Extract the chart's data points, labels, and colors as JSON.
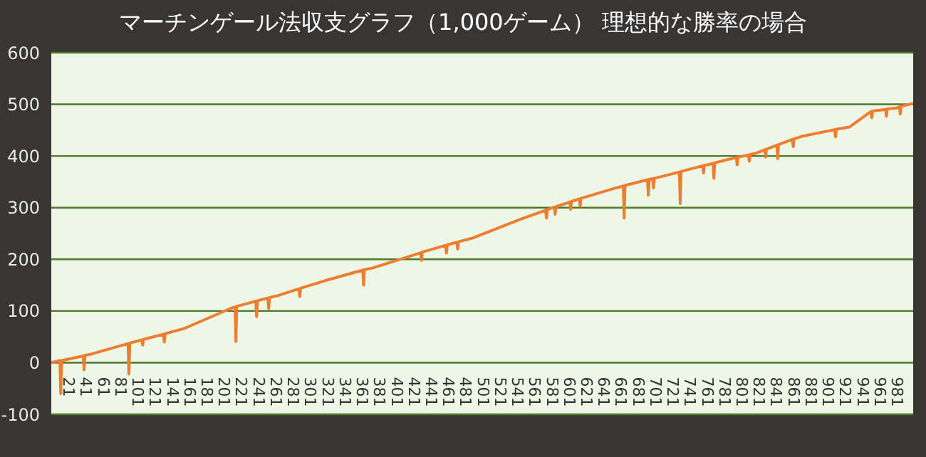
{
  "chart_data": {
    "type": "line",
    "title": "マーチンゲール法収支グラフ（1,000ゲーム） 理想的な勝率の場合",
    "series": [
      {
        "color": "#ed7d31",
        "x": [
          1,
          11,
          12,
          13,
          38,
          39,
          40,
          46,
          90,
          91,
          92,
          106,
          107,
          108,
          131,
          132,
          133,
          155,
          209,
          214,
          215,
          216,
          238,
          239,
          240,
          252,
          253,
          254,
          264,
          288,
          289,
          290,
          319,
          362,
          363,
          364,
          373,
          428,
          429,
          430,
          431,
          458,
          459,
          460,
          471,
          472,
          473,
          489,
          544,
          574,
          575,
          576,
          584,
          585,
          586,
          599,
          602,
          603,
          604,
          613,
          614,
          615,
          653,
          664,
          665,
          666,
          692,
          693,
          694,
          698,
          699,
          700,
          708,
          729,
          730,
          731,
          756,
          757,
          758,
          762,
          768,
          769,
          770,
          795,
          796,
          797,
          809,
          810,
          811,
          817,
          828,
          829,
          830,
          842,
          843,
          844,
          860,
          861,
          862,
          871,
          909,
          910,
          911,
          926,
          951,
          952,
          953,
          968,
          969,
          970,
          981,
          984,
          985,
          986,
          1000
        ],
        "values": [
          0,
          4,
          -60,
          4,
          13,
          -14,
          14,
          16,
          37,
          -22,
          38,
          44,
          34,
          45,
          55,
          40,
          56,
          66,
          105,
          108,
          41,
          109,
          119,
          89,
          120,
          125,
          105,
          126,
          130,
          143,
          128,
          144,
          159,
          179,
          150,
          180,
          183,
          212,
          213,
          198,
          214,
          227,
          212,
          228,
          233,
          220,
          234,
          241,
          277,
          295,
          280,
          296,
          301,
          287,
          302,
          309,
          311,
          297,
          312,
          317,
          303,
          318,
          337,
          342,
          280,
          343,
          354,
          324,
          355,
          356,
          338,
          357,
          360,
          369,
          308,
          370,
          381,
          367,
          382,
          383,
          386,
          357,
          387,
          397,
          383,
          398,
          402,
          390,
          403,
          405,
          412,
          398,
          413,
          421,
          395,
          422,
          432,
          418,
          433,
          438,
          451,
          437,
          452,
          456,
          486,
          474,
          487,
          490,
          477,
          491,
          493,
          495,
          481,
          496,
          502
        ]
      }
    ],
    "xlim": [
      1,
      1000
    ],
    "xticks": [
      21,
      41,
      61,
      81,
      101,
      121,
      141,
      161,
      181,
      201,
      221,
      241,
      261,
      281,
      301,
      321,
      341,
      361,
      381,
      401,
      421,
      441,
      461,
      481,
      501,
      521,
      541,
      561,
      581,
      601,
      621,
      641,
      661,
      681,
      701,
      721,
      741,
      761,
      781,
      801,
      821,
      841,
      861,
      881,
      901,
      921,
      941,
      961,
      981
    ],
    "ylim": [
      -100,
      600
    ],
    "yticks": [
      -100,
      0,
      100,
      200,
      300,
      400,
      500,
      600
    ],
    "grid": "y",
    "legend": false,
    "marker": "none",
    "line_style": "solid"
  }
}
